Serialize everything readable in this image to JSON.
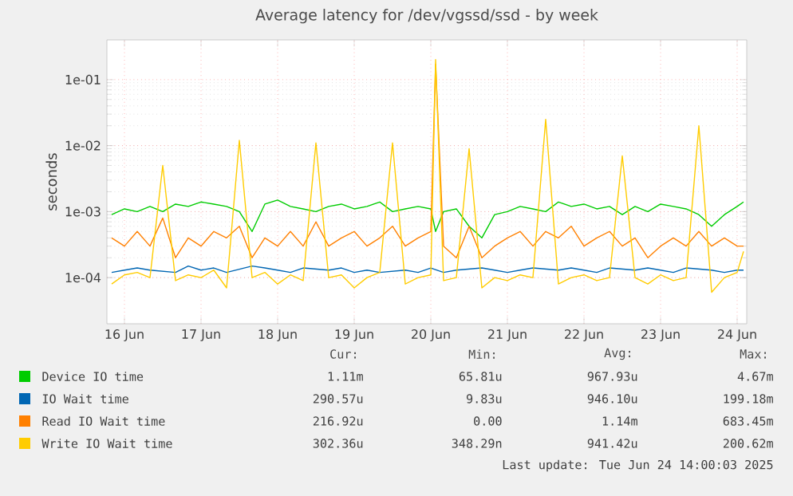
{
  "chart_data": {
    "type": "line",
    "title": "Average latency for /dev/vgssd/ssd - by week",
    "ylabel": "seconds",
    "x": [
      "2025-06-16T08:00",
      "2025-06-16T12:00",
      "2025-06-16T16:00",
      "2025-06-16T20:00",
      "2025-06-17T00:00",
      "2025-06-17T04:00",
      "2025-06-17T08:00",
      "2025-06-17T12:00",
      "2025-06-17T16:00",
      "2025-06-17T20:00",
      "2025-06-18T00:00",
      "2025-06-18T04:00",
      "2025-06-18T08:00",
      "2025-06-18T12:00",
      "2025-06-18T16:00",
      "2025-06-18T20:00",
      "2025-06-19T00:00",
      "2025-06-19T04:00",
      "2025-06-19T08:00",
      "2025-06-19T12:00",
      "2025-06-19T16:00",
      "2025-06-19T20:00",
      "2025-06-20T00:00",
      "2025-06-20T04:00",
      "2025-06-20T08:00",
      "2025-06-20T12:00",
      "2025-06-20T13:30",
      "2025-06-20T16:00",
      "2025-06-20T20:00",
      "2025-06-21T00:00",
      "2025-06-21T04:00",
      "2025-06-21T08:00",
      "2025-06-21T12:00",
      "2025-06-21T16:00",
      "2025-06-21T20:00",
      "2025-06-22T00:00",
      "2025-06-22T04:00",
      "2025-06-22T08:00",
      "2025-06-22T12:00",
      "2025-06-22T16:00",
      "2025-06-22T20:00",
      "2025-06-23T00:00",
      "2025-06-23T04:00",
      "2025-06-23T08:00",
      "2025-06-23T12:00",
      "2025-06-23T16:00",
      "2025-06-23T20:00",
      "2025-06-24T00:00",
      "2025-06-24T04:00",
      "2025-06-24T08:00",
      "2025-06-24T12:00",
      "2025-06-24T14:00"
    ],
    "series": [
      {
        "name": "Device IO time",
        "color": "#00cc00",
        "values": [
          0.0009,
          0.0011,
          0.001,
          0.0012,
          0.001,
          0.0013,
          0.0012,
          0.0014,
          0.0013,
          0.0012,
          0.001,
          0.0005,
          0.0013,
          0.0015,
          0.0012,
          0.0011,
          0.001,
          0.0012,
          0.0013,
          0.0011,
          0.0012,
          0.0014,
          0.001,
          0.0011,
          0.0012,
          0.0011,
          0.0005,
          0.001,
          0.0011,
          0.0006,
          0.0004,
          0.0009,
          0.001,
          0.0012,
          0.0011,
          0.001,
          0.0014,
          0.0012,
          0.0013,
          0.0011,
          0.0012,
          0.0009,
          0.0012,
          0.001,
          0.0013,
          0.0012,
          0.0011,
          0.0009,
          0.0006,
          0.0009,
          0.0012,
          0.0014
        ]
      },
      {
        "name": "IO Wait time",
        "color": "#0066b3",
        "values": [
          0.00012,
          0.00013,
          0.00014,
          0.00013,
          null,
          0.00012,
          0.00015,
          0.00013,
          0.00014,
          0.00012,
          null,
          0.00015,
          0.00014,
          0.00013,
          0.00012,
          0.00014,
          null,
          0.00013,
          0.00014,
          0.00012,
          0.00013,
          0.00012,
          null,
          0.00013,
          0.00012,
          0.00014,
          null,
          0.00012,
          0.00013,
          null,
          0.00014,
          0.00013,
          0.00012,
          0.00013,
          0.00014,
          null,
          0.00013,
          0.00014,
          0.00013,
          0.00012,
          0.00014,
          null,
          0.00013,
          0.00014,
          0.00013,
          0.00012,
          0.00014,
          null,
          0.00013,
          0.00012,
          0.00013,
          0.00013
        ]
      },
      {
        "name": "Read IO Wait time",
        "color": "#ff8000",
        "values": [
          0.0004,
          0.0003,
          0.0005,
          0.0003,
          0.0008,
          0.0002,
          0.0004,
          0.0003,
          0.0005,
          0.0004,
          0.0006,
          0.0002,
          0.0004,
          0.0003,
          0.0005,
          0.0003,
          0.0007,
          0.0003,
          0.0004,
          0.0005,
          0.0003,
          0.0004,
          0.0006,
          0.0003,
          0.0004,
          0.0005,
          0.17,
          0.0003,
          0.0002,
          0.0006,
          0.0002,
          0.0003,
          0.0004,
          0.0005,
          0.0003,
          0.0005,
          0.0004,
          0.0006,
          0.0003,
          0.0004,
          0.0005,
          0.0003,
          0.0004,
          0.0002,
          0.0003,
          0.0004,
          0.0003,
          0.0005,
          0.0003,
          0.0004,
          0.0003,
          0.0003
        ]
      },
      {
        "name": "Write IO Wait time",
        "color": "#ffcc00",
        "values": [
          8e-05,
          0.00011,
          0.00012,
          0.0001,
          0.005,
          9e-05,
          0.00011,
          0.0001,
          0.00013,
          7e-05,
          0.012,
          0.0001,
          0.00012,
          8e-05,
          0.00011,
          9e-05,
          0.011,
          0.0001,
          0.00011,
          7e-05,
          0.0001,
          0.00012,
          0.011,
          8e-05,
          0.0001,
          0.00011,
          0.2006,
          9e-05,
          0.0001,
          0.009,
          7e-05,
          0.0001,
          9e-05,
          0.00011,
          0.0001,
          0.025,
          8e-05,
          0.0001,
          0.00011,
          9e-05,
          0.0001,
          0.007,
          0.0001,
          8e-05,
          0.00011,
          9e-05,
          0.0001,
          0.02,
          6e-05,
          0.0001,
          0.00012,
          0.00025
        ]
      }
    ],
    "log": "y",
    "xlim": [
      "2025-06-16T06:30",
      "2025-06-24T15:00"
    ],
    "ylim": [
      2e-05,
      0.4
    ],
    "xticks": [
      {
        "value": "2025-06-16T12:00",
        "label": "16 Jun"
      },
      {
        "value": "2025-06-17T12:00",
        "label": "17 Jun"
      },
      {
        "value": "2025-06-18T12:00",
        "label": "18 Jun"
      },
      {
        "value": "2025-06-19T12:00",
        "label": "19 Jun"
      },
      {
        "value": "2025-06-20T12:00",
        "label": "20 Jun"
      },
      {
        "value": "2025-06-21T12:00",
        "label": "21 Jun"
      },
      {
        "value": "2025-06-22T12:00",
        "label": "22 Jun"
      },
      {
        "value": "2025-06-23T12:00",
        "label": "23 Jun"
      },
      {
        "value": "2025-06-24T12:00",
        "label": "24 Jun"
      }
    ],
    "yticks": [
      {
        "value": 0.0001,
        "label": "1e-04"
      },
      {
        "value": 0.001,
        "label": "1e-03"
      },
      {
        "value": 0.01,
        "label": "1e-02"
      },
      {
        "value": 0.1,
        "label": "1e-01"
      }
    ],
    "grid": true,
    "legend": "bottom",
    "marker": "none",
    "line_style": "solid",
    "annotations": [
      "Cur:",
      "Min:",
      "Avg:",
      "Max:",
      "1.11m",
      "65.81u",
      "967.93u",
      "4.67m",
      "290.57u",
      "9.83u",
      "946.10u",
      "199.18m",
      "216.92u",
      "0.00",
      "1.14m",
      "683.45m",
      "302.36u",
      "348.29n",
      "941.42u",
      "200.62m",
      "Last update: Tue Jun 24 14:00:03 2025"
    ]
  }
}
